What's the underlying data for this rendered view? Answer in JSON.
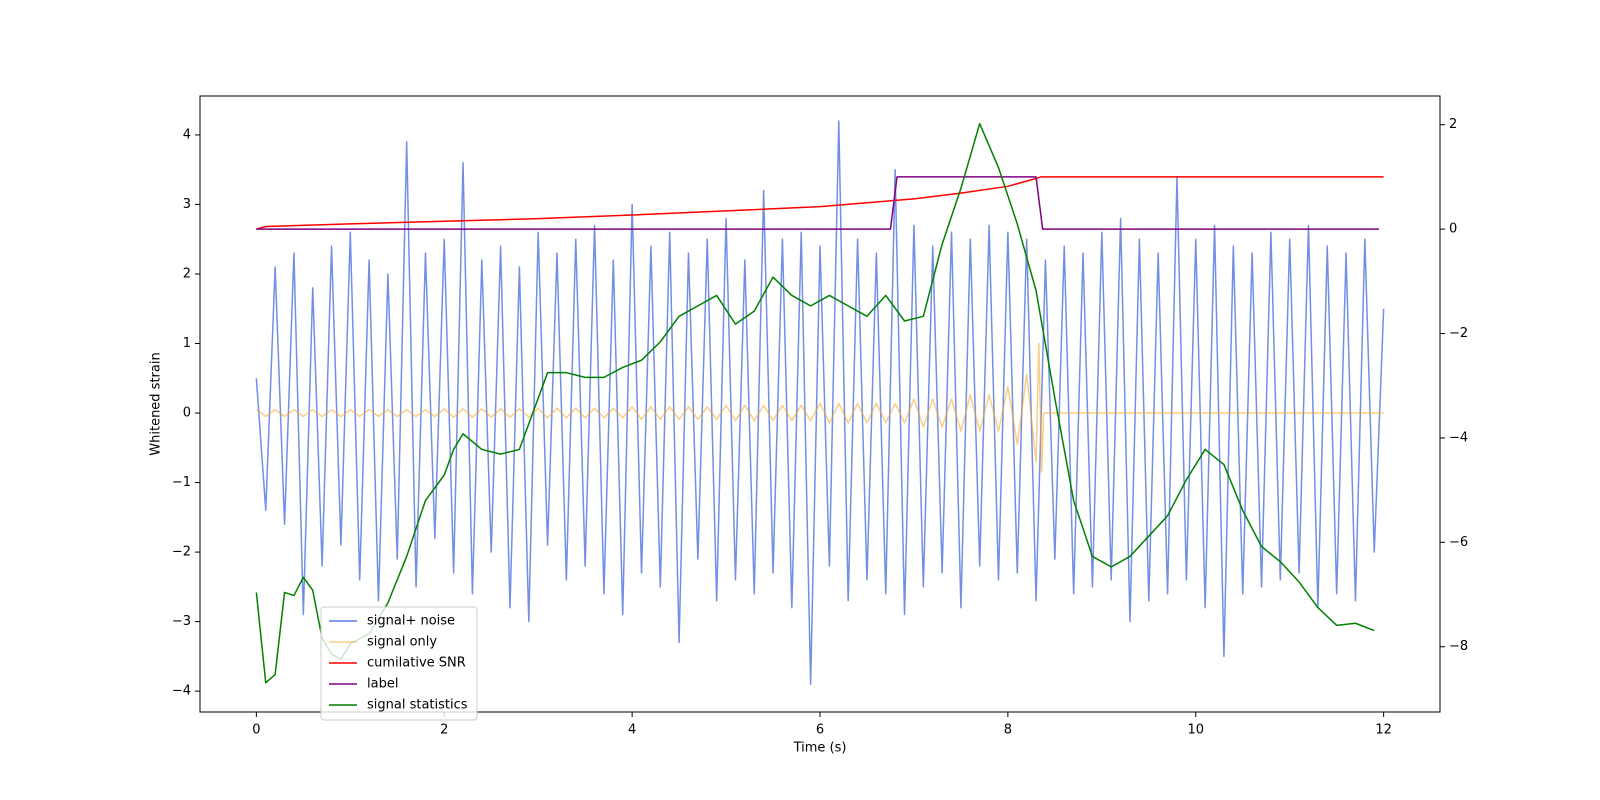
{
  "chart_data": {
    "type": "line",
    "xlabel": "Time (s)",
    "ylabel": "Whitened strain",
    "xlim": [
      -0.6,
      12.6
    ],
    "xticks": [
      0,
      2,
      4,
      6,
      8,
      10,
      12
    ],
    "ylim": [
      -4.3,
      4.56
    ],
    "yticks": [
      {
        "value": -4,
        "label": "−4"
      },
      {
        "value": -3,
        "label": "−3"
      },
      {
        "value": -2,
        "label": "−2"
      },
      {
        "value": -1,
        "label": "−1"
      },
      0,
      1,
      2,
      3,
      4
    ],
    "y2lim": [
      -9.25,
      2.55
    ],
    "y2ticks": [
      {
        "value": -8,
        "label": "−8"
      },
      {
        "value": -6,
        "label": "−6"
      },
      {
        "value": -4,
        "label": "−4"
      },
      {
        "value": -2,
        "label": "−2"
      },
      0,
      2
    ],
    "legend": "lower left",
    "series": [
      {
        "name": "signal+ noise",
        "color": "#5b7be0",
        "x": [
          0,
          0.1,
          0.2,
          0.3,
          0.4,
          0.5,
          0.6,
          0.7,
          0.8,
          0.9,
          1,
          1.1,
          1.2,
          1.3,
          1.4,
          1.5,
          1.6,
          1.7,
          1.8,
          1.9,
          2,
          2.1,
          2.2,
          2.3,
          2.4,
          2.5,
          2.6,
          2.7,
          2.8,
          2.9,
          3,
          3.1,
          3.2,
          3.3,
          3.4,
          3.5,
          3.6,
          3.7,
          3.8,
          3.9,
          4,
          4.1,
          4.2,
          4.3,
          4.4,
          4.5,
          4.6,
          4.7,
          4.8,
          4.9,
          5,
          5.1,
          5.2,
          5.3,
          5.4,
          5.5,
          5.6,
          5.7,
          5.8,
          5.9,
          6,
          6.1,
          6.2,
          6.3,
          6.4,
          6.5,
          6.6,
          6.7,
          6.8,
          6.9,
          7,
          7.1,
          7.2,
          7.3,
          7.4,
          7.5,
          7.6,
          7.7,
          7.8,
          7.9,
          8,
          8.1,
          8.2,
          8.3,
          8.4,
          8.5,
          8.6,
          8.7,
          8.8,
          8.9,
          9,
          9.1,
          9.2,
          9.3,
          9.4,
          9.5,
          9.6,
          9.7,
          9.8,
          9.9,
          10,
          10.1,
          10.2,
          10.3,
          10.4,
          10.5,
          10.6,
          10.7,
          10.8,
          10.9,
          11,
          11.1,
          11.2,
          11.3,
          11.4,
          11.5,
          11.6,
          11.7,
          11.8,
          11.9,
          12
        ],
        "values": [
          0.5,
          -1.4,
          2.1,
          -1.6,
          2.3,
          -2.9,
          1.8,
          -2.2,
          2.4,
          -1.9,
          2.6,
          -2.4,
          2.2,
          -2.7,
          2.0,
          -2.1,
          3.9,
          -2.5,
          2.3,
          -1.8,
          2.5,
          -2.3,
          3.6,
          -2.6,
          2.2,
          -2.0,
          2.4,
          -2.8,
          2.1,
          -3.0,
          2.6,
          -1.9,
          2.3,
          -2.4,
          2.5,
          -2.2,
          2.7,
          -2.6,
          2.2,
          -2.9,
          3.0,
          -2.3,
          2.4,
          -2.5,
          2.6,
          -3.3,
          2.3,
          -2.1,
          2.5,
          -2.7,
          2.8,
          -2.4,
          2.2,
          -2.6,
          3.2,
          -2.3,
          2.5,
          -2.8,
          2.6,
          -3.9,
          2.4,
          -2.2,
          4.2,
          -2.7,
          2.5,
          -2.4,
          2.3,
          -2.6,
          3.5,
          -2.9,
          2.7,
          -2.5,
          2.4,
          -2.3,
          2.6,
          -2.8,
          2.5,
          -2.2,
          2.7,
          -2.4,
          2.6,
          -2.3,
          2.5,
          -2.7,
          2.2,
          -2.1,
          2.4,
          -2.6,
          2.3,
          -2.5,
          2.6,
          -2.4,
          2.8,
          -3.0,
          2.5,
          -2.7,
          2.3,
          -2.6,
          3.4,
          -2.4,
          2.5,
          -2.8,
          2.7,
          -3.5,
          2.4,
          -2.6,
          2.3,
          -2.5,
          2.6,
          -2.4,
          2.5,
          -2.3,
          2.7,
          -2.8,
          2.4,
          -2.6,
          2.3,
          -2.7,
          2.5,
          -2.0,
          1.5
        ]
      },
      {
        "name": "signal only",
        "color": "#f5a623",
        "x": [
          0,
          0.1,
          0.2,
          0.3,
          0.4,
          0.5,
          0.6,
          0.7,
          0.8,
          0.9,
          1,
          1.1,
          1.2,
          1.3,
          1.4,
          1.5,
          1.6,
          1.7,
          1.8,
          1.9,
          2,
          2.1,
          2.2,
          2.3,
          2.4,
          2.5,
          2.6,
          2.7,
          2.8,
          2.9,
          3,
          3.1,
          3.2,
          3.3,
          3.4,
          3.5,
          3.6,
          3.7,
          3.8,
          3.9,
          4,
          4.1,
          4.2,
          4.3,
          4.4,
          4.5,
          4.6,
          4.7,
          4.8,
          4.9,
          5,
          5.1,
          5.2,
          5.3,
          5.4,
          5.5,
          5.6,
          5.7,
          5.8,
          5.9,
          6,
          6.1,
          6.2,
          6.3,
          6.4,
          6.5,
          6.6,
          6.7,
          6.8,
          6.9,
          7,
          7.1,
          7.2,
          7.3,
          7.4,
          7.5,
          7.6,
          7.7,
          7.8,
          7.9,
          8,
          8.1,
          8.2,
          8.3,
          8.33,
          8.36,
          8.38,
          12
        ],
        "values": [
          0.05,
          -0.05,
          0.05,
          -0.05,
          0.05,
          -0.05,
          0.05,
          -0.05,
          0.05,
          -0.05,
          0.05,
          -0.05,
          0.05,
          -0.05,
          0.05,
          -0.05,
          0.05,
          -0.05,
          0.05,
          -0.05,
          0.06,
          -0.06,
          0.06,
          -0.06,
          0.06,
          -0.06,
          0.06,
          -0.06,
          0.06,
          -0.06,
          0.07,
          -0.07,
          0.07,
          -0.07,
          0.07,
          -0.07,
          0.07,
          -0.07,
          0.07,
          -0.07,
          0.09,
          -0.09,
          0.09,
          -0.09,
          0.09,
          -0.09,
          0.09,
          -0.09,
          0.09,
          -0.09,
          0.11,
          -0.11,
          0.11,
          -0.11,
          0.11,
          -0.11,
          0.11,
          -0.11,
          0.11,
          -0.11,
          0.14,
          -0.14,
          0.14,
          -0.14,
          0.14,
          -0.14,
          0.14,
          -0.14,
          0.14,
          -0.14,
          0.2,
          -0.2,
          0.2,
          -0.2,
          0.2,
          -0.26,
          0.26,
          -0.26,
          0.26,
          -0.26,
          0.38,
          -0.45,
          0.55,
          -0.7,
          1.0,
          -0.85,
          0,
          0
        ]
      },
      {
        "name": "cumilative SNR",
        "color": "#ff0000",
        "axis": "y2",
        "x": [
          0,
          0.1,
          1,
          2,
          3,
          4,
          5,
          6,
          7,
          7.5,
          8,
          8.3,
          8.35,
          12
        ],
        "values": [
          0,
          0.05,
          0.1,
          0.15,
          0.2,
          0.27,
          0.35,
          0.43,
          0.58,
          0.69,
          0.82,
          0.97,
          1,
          1
        ]
      },
      {
        "name": "label",
        "color": "#800080",
        "axis": "y2",
        "x": [
          0,
          6.75,
          6.82,
          8.3,
          8.37,
          11.95
        ],
        "values": [
          0,
          0,
          1,
          1,
          0,
          0
        ]
      },
      {
        "name": "signal statistics",
        "color": "#008000",
        "axis": "y2",
        "x": [
          0,
          0.1,
          0.2,
          0.3,
          0.4,
          0.5,
          0.6,
          0.7,
          0.8,
          0.9,
          1.0,
          1.2,
          1.4,
          1.6,
          1.8,
          2.0,
          2.1,
          2.2,
          2.4,
          2.6,
          2.8,
          3.0,
          3.1,
          3.3,
          3.5,
          3.7,
          3.9,
          4.1,
          4.3,
          4.5,
          4.7,
          4.9,
          5.1,
          5.3,
          5.5,
          5.7,
          5.9,
          6.1,
          6.3,
          6.5,
          6.7,
          6.9,
          7.1,
          7.3,
          7.5,
          7.7,
          7.9,
          8.1,
          8.3,
          8.5,
          8.7,
          8.9,
          9.1,
          9.3,
          9.5,
          9.7,
          9.9,
          10.1,
          10.3,
          10.5,
          10.7,
          10.9,
          11.1,
          11.3,
          11.5,
          11.7,
          11.9
        ],
        "values": [
          -6.96,
          -8.69,
          -8.53,
          -6.96,
          -7.02,
          -6.67,
          -6.92,
          -7.84,
          -8.14,
          -8.24,
          -7.94,
          -7.75,
          -7.16,
          -6.27,
          -5.2,
          -4.71,
          -4.22,
          -3.92,
          -4.22,
          -4.31,
          -4.22,
          -3.24,
          -2.75,
          -2.75,
          -2.84,
          -2.84,
          -2.65,
          -2.51,
          -2.16,
          -1.67,
          -1.47,
          -1.27,
          -1.82,
          -1.57,
          -0.92,
          -1.27,
          -1.47,
          -1.27,
          -1.47,
          -1.67,
          -1.27,
          -1.76,
          -1.67,
          -0.29,
          0.78,
          2.02,
          1.18,
          0.1,
          -1.18,
          -3.24,
          -5.2,
          -6.27,
          -6.47,
          -6.27,
          -5.88,
          -5.49,
          -4.8,
          -4.22,
          -4.51,
          -5.39,
          -6.08,
          -6.37,
          -6.76,
          -7.25,
          -7.59,
          -7.55,
          -7.69
        ]
      }
    ]
  }
}
